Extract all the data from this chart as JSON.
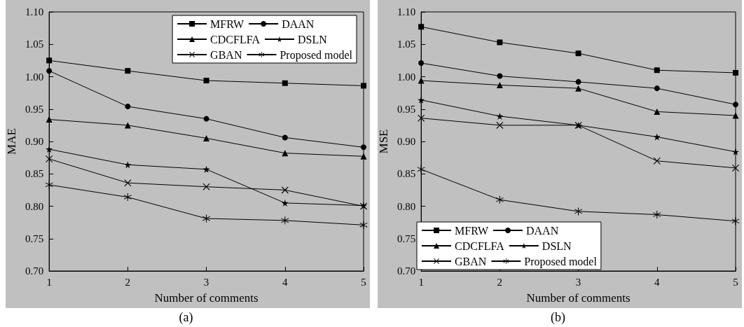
{
  "chart_data": [
    {
      "type": "line",
      "xlabel": "Number of comments",
      "ylabel": "MAE",
      "annotations": [
        "(a)"
      ],
      "x": [
        1,
        2,
        3,
        4,
        5
      ],
      "xlim": [
        1,
        5
      ],
      "xticks": [
        1,
        2,
        3,
        4,
        5
      ],
      "ylim": [
        0.7,
        1.1
      ],
      "yticks": [
        {
          "value": 0.7,
          "label": "0.70"
        },
        0.75,
        {
          "value": 0.8,
          "label": "0.80"
        },
        0.85,
        {
          "value": 0.9,
          "label": "0.90"
        },
        0.95,
        {
          "value": 1.0,
          "label": "1.00"
        },
        1.05,
        {
          "value": 1.1,
          "label": "1.10"
        }
      ],
      "grid": false,
      "legend": "top right",
      "line_style": "solid",
      "series": [
        {
          "name": "MFRW",
          "color": "#000000",
          "marker": "square",
          "values": [
            1.025,
            1.009,
            0.994,
            0.99,
            0.986
          ]
        },
        {
          "name": "DAAN",
          "color": "#000000",
          "marker": "circle",
          "values": [
            1.009,
            0.954,
            0.935,
            0.906,
            0.891
          ]
        },
        {
          "name": "CDCFLFA",
          "color": "#000000",
          "marker": "triangle",
          "values": [
            0.934,
            0.925,
            0.905,
            0.882,
            0.877
          ]
        },
        {
          "name": "DSLN",
          "color": "#000000",
          "marker": "star",
          "values": [
            0.888,
            0.864,
            0.857,
            0.805,
            0.801
          ]
        },
        {
          "name": "GBAN",
          "color": "#000000",
          "marker": "cross",
          "values": [
            0.873,
            0.836,
            0.83,
            0.825,
            0.8
          ]
        },
        {
          "name": "Proposed model",
          "color": "#000000",
          "marker": "asterisk",
          "values": [
            0.833,
            0.814,
            0.781,
            0.778,
            0.771
          ]
        }
      ]
    },
    {
      "type": "line",
      "xlabel": "Number of comments",
      "ylabel": "MSE",
      "annotations": [
        "(b)"
      ],
      "x": [
        1,
        2,
        3,
        4,
        5
      ],
      "xlim": [
        1,
        5
      ],
      "xticks": [
        1,
        2,
        3,
        4,
        5
      ],
      "ylim": [
        0.7,
        1.1
      ],
      "yticks": [
        {
          "value": 0.7,
          "label": "0.70"
        },
        0.75,
        {
          "value": 0.8,
          "label": "0.80"
        },
        0.85,
        {
          "value": 0.9,
          "label": "0.90"
        },
        0.95,
        {
          "value": 1.0,
          "label": "1.00"
        },
        1.05,
        {
          "value": 1.1,
          "label": "1.10"
        }
      ],
      "grid": false,
      "legend": "bottom left",
      "line_style": "solid",
      "series": [
        {
          "name": "MFRW",
          "color": "#000000",
          "marker": "square",
          "values": [
            1.077,
            1.053,
            1.036,
            1.01,
            1.006
          ]
        },
        {
          "name": "DAAN",
          "color": "#000000",
          "marker": "circle",
          "values": [
            1.021,
            1.001,
            0.992,
            0.982,
            0.957
          ]
        },
        {
          "name": "CDCFLFA",
          "color": "#000000",
          "marker": "triangle",
          "values": [
            0.994,
            0.987,
            0.982,
            0.946,
            0.94
          ]
        },
        {
          "name": "DSLN",
          "color": "#000000",
          "marker": "star",
          "values": [
            0.964,
            0.939,
            0.925,
            0.907,
            0.884
          ]
        },
        {
          "name": "GBAN",
          "color": "#000000",
          "marker": "cross",
          "values": [
            0.936,
            0.925,
            0.925,
            0.87,
            0.859
          ]
        },
        {
          "name": "Proposed model",
          "color": "#000000",
          "marker": "asterisk",
          "values": [
            0.857,
            0.81,
            0.792,
            0.787,
            0.777
          ]
        }
      ]
    }
  ]
}
